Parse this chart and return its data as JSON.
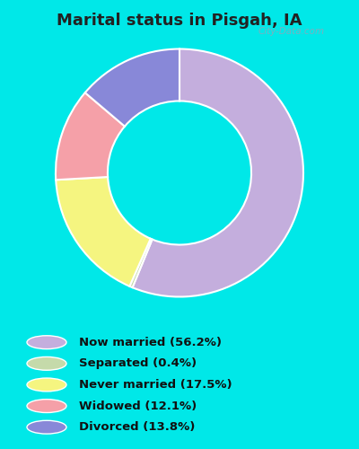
{
  "title": "Marital status in Pisgah, IA",
  "slices": [
    56.2,
    0.4,
    17.5,
    12.1,
    13.8
  ],
  "colors": [
    "#c4aedd",
    "#c5daaa",
    "#f5f580",
    "#f5a0a8",
    "#8888d8"
  ],
  "labels": [
    "Now married (56.2%)",
    "Separated (0.4%)",
    "Never married (17.5%)",
    "Widowed (12.1%)",
    "Divorced (13.8%)"
  ],
  "legend_colors": [
    "#c4aedd",
    "#c5daaa",
    "#f5f580",
    "#f5a0a8",
    "#8888d8"
  ],
  "bg_cyan": "#00e8e8",
  "bg_chart": "#d5ecd5",
  "title_color": "#222222",
  "watermark": "City-Data.com",
  "donut_width": 0.42
}
